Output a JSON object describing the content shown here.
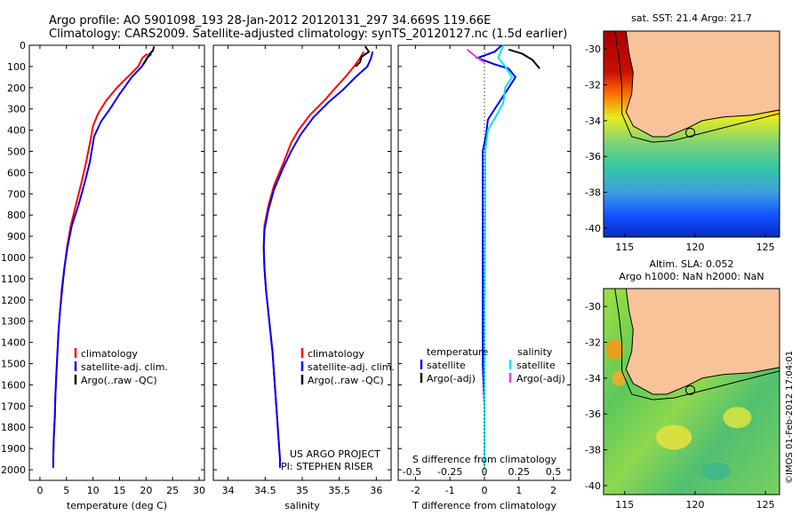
{
  "header": {
    "line1": "Argo profile: AO 5901098_193 28-Jan-2012 20120131_297 34.669S 119.66E",
    "line2": "Climatology: CARS2009. Satellite-adjusted climatology: synTS_20120127.nc (1.5d earlier)"
  },
  "credits": {
    "line1": "US ARGO PROJECT",
    "line2": "PI: STEPHEN RISER"
  },
  "stamp": "©IMOS 01-Feb-2012 17:04:01",
  "colors": {
    "climatology": "#ff0000",
    "satellite": "#0000ff",
    "argo": "#000000",
    "sat_salinity": "#00e5ee",
    "argo_salinity": "#e040e0",
    "land": "#f9c39a"
  },
  "chart_data": [
    {
      "type": "line",
      "xlabel": "temperature (deg C)",
      "xlim": [
        -2,
        31
      ],
      "xticks": [
        0,
        5,
        10,
        15,
        20,
        25,
        30
      ],
      "ylim": [
        0,
        2050
      ],
      "yticks": [
        0,
        100,
        200,
        300,
        400,
        500,
        600,
        700,
        800,
        900,
        1000,
        1100,
        1200,
        1300,
        1400,
        1500,
        1600,
        1700,
        1800,
        1900,
        2000
      ],
      "legend": [
        "climatology",
        "satellite-adj. clim.",
        "Argo(..raw -QC)"
      ],
      "series": [
        {
          "name": "climatology",
          "color": "#ff0000",
          "points": [
            [
              20.2,
              40
            ],
            [
              19.3,
              60
            ],
            [
              18.5,
              100
            ],
            [
              16.5,
              150
            ],
            [
              14.5,
              200
            ],
            [
              12.5,
              260
            ],
            [
              11,
              320
            ],
            [
              10,
              380
            ],
            [
              9.5,
              450
            ],
            [
              8.7,
              550
            ],
            [
              7.8,
              650
            ],
            [
              6.8,
              750
            ],
            [
              5.8,
              850
            ],
            [
              5.1,
              950
            ],
            [
              4.6,
              1050
            ],
            [
              4.1,
              1150
            ],
            [
              3.8,
              1250
            ],
            [
              3.5,
              1350
            ],
            [
              3.3,
              1450
            ],
            [
              3.1,
              1550
            ],
            [
              2.9,
              1650
            ],
            [
              2.8,
              1750
            ],
            [
              2.6,
              1850
            ],
            [
              2.5,
              1950
            ],
            [
              2.5,
              1990
            ]
          ]
        },
        {
          "name": "satellite-adj. clim.",
          "color": "#0000ff",
          "points": [
            [
              21,
              40
            ],
            [
              20.2,
              60
            ],
            [
              19.2,
              100
            ],
            [
              17.3,
              150
            ],
            [
              15,
              230
            ],
            [
              13.2,
              300
            ],
            [
              11.5,
              360
            ],
            [
              10.2,
              430
            ],
            [
              9.4,
              550
            ],
            [
              8.4,
              650
            ],
            [
              7.3,
              750
            ],
            [
              6,
              850
            ],
            [
              5.2,
              950
            ],
            [
              4.6,
              1050
            ],
            [
              4.2,
              1150
            ],
            [
              3.8,
              1250
            ],
            [
              3.5,
              1350
            ],
            [
              3.3,
              1450
            ],
            [
              3.1,
              1550
            ],
            [
              2.9,
              1650
            ],
            [
              2.8,
              1750
            ],
            [
              2.6,
              1850
            ],
            [
              2.5,
              1950
            ],
            [
              2.5,
              1990
            ]
          ]
        },
        {
          "name": "Argo(..raw -QC)",
          "color": "#000000",
          "points": [
            [
              21.5,
              5
            ],
            [
              21.3,
              25
            ],
            [
              20.5,
              45
            ],
            [
              20,
              70
            ],
            [
              19.5,
              90
            ]
          ]
        }
      ]
    },
    {
      "type": "line",
      "xlabel": "salinity",
      "xlim": [
        33.8,
        36.2
      ],
      "xticks": [
        34,
        34.5,
        35,
        35.5,
        36
      ],
      "ylim": [
        0,
        2050
      ],
      "legend": [
        "climatology",
        "satellite-adj. clim.",
        "Argo(..raw -QC)"
      ],
      "series": [
        {
          "name": "climatology",
          "color": "#ff0000",
          "points": [
            [
              35.83,
              30
            ],
            [
              35.78,
              60
            ],
            [
              35.7,
              100
            ],
            [
              35.58,
              150
            ],
            [
              35.45,
              200
            ],
            [
              35.3,
              260
            ],
            [
              35.1,
              330
            ],
            [
              34.95,
              400
            ],
            [
              34.85,
              460
            ],
            [
              34.74,
              560
            ],
            [
              34.62,
              660
            ],
            [
              34.54,
              760
            ],
            [
              34.49,
              850
            ],
            [
              34.48,
              950
            ],
            [
              34.49,
              1050
            ],
            [
              34.51,
              1150
            ],
            [
              34.54,
              1250
            ],
            [
              34.57,
              1350
            ],
            [
              34.6,
              1450
            ],
            [
              34.62,
              1550
            ],
            [
              34.64,
              1650
            ],
            [
              34.66,
              1750
            ],
            [
              34.68,
              1850
            ],
            [
              34.7,
              1950
            ],
            [
              34.7,
              1990
            ]
          ]
        },
        {
          "name": "satellite-adj. clim.",
          "color": "#0000ff",
          "points": [
            [
              35.95,
              30
            ],
            [
              35.93,
              60
            ],
            [
              35.88,
              100
            ],
            [
              35.72,
              150
            ],
            [
              35.55,
              210
            ],
            [
              35.35,
              270
            ],
            [
              35.15,
              340
            ],
            [
              34.98,
              420
            ],
            [
              34.85,
              500
            ],
            [
              34.74,
              580
            ],
            [
              34.62,
              680
            ],
            [
              34.54,
              780
            ],
            [
              34.49,
              870
            ],
            [
              34.48,
              950
            ],
            [
              34.49,
              1050
            ],
            [
              34.51,
              1150
            ],
            [
              34.54,
              1250
            ],
            [
              34.57,
              1350
            ],
            [
              34.6,
              1450
            ],
            [
              34.62,
              1550
            ],
            [
              34.64,
              1650
            ],
            [
              34.66,
              1750
            ],
            [
              34.68,
              1850
            ],
            [
              34.7,
              1950
            ],
            [
              34.7,
              1990
            ]
          ]
        },
        {
          "name": "Argo(..raw -QC)",
          "color": "#000000",
          "points": [
            [
              35.85,
              5
            ],
            [
              35.9,
              30
            ],
            [
              35.8,
              55
            ],
            [
              35.78,
              80
            ],
            [
              35.72,
              100
            ]
          ]
        }
      ]
    },
    {
      "type": "line",
      "xlabel": "T difference from climatology",
      "xlabel_top": "S difference from climatology",
      "xlim": [
        -2.5,
        2.5
      ],
      "xticks": [
        -2,
        -1,
        0,
        1,
        2
      ],
      "xticks_top": [
        "-0.5",
        "-0.25",
        "0",
        "0.25",
        "0.5"
      ],
      "ylim": [
        0,
        2050
      ],
      "legend_temperature": {
        "title": "temperature",
        "items": [
          "satellite",
          "Argo(-adj)"
        ]
      },
      "legend_salinity": {
        "title": "salinity",
        "items": [
          "satellite",
          "Argo(-adj)"
        ]
      },
      "series": [
        {
          "name": "temperature satellite",
          "color": "#0000ff",
          "points": [
            [
              0.5,
              0
            ],
            [
              0.3,
              30
            ],
            [
              -0.2,
              60
            ],
            [
              0.3,
              90
            ],
            [
              0.7,
              110
            ],
            [
              0.9,
              150
            ],
            [
              0.7,
              200
            ],
            [
              0.5,
              250
            ],
            [
              0.3,
              300
            ],
            [
              0.1,
              350
            ],
            [
              0.05,
              420
            ],
            [
              -0.05,
              500
            ],
            [
              -0.05,
              700
            ],
            [
              -0.05,
              900
            ],
            [
              -0.05,
              1100
            ],
            [
              -0.05,
              1300
            ],
            [
              -0.05,
              1500
            ],
            [
              0,
              1700
            ],
            [
              0,
              1990
            ]
          ]
        },
        {
          "name": "temperature Argo(-adj)",
          "color": "#000000",
          "points": [
            [
              0.7,
              20
            ],
            [
              1.1,
              40
            ],
            [
              1.4,
              70
            ],
            [
              1.5,
              90
            ],
            [
              1.6,
              110
            ]
          ]
        },
        {
          "name": "salinity satellite",
          "color": "#00e5ee",
          "points": [
            [
              0.55,
              0
            ],
            [
              0.4,
              60
            ],
            [
              0.6,
              100
            ],
            [
              0.8,
              150
            ],
            [
              0.6,
              200
            ],
            [
              0.55,
              270
            ],
            [
              0.35,
              330
            ],
            [
              0.1,
              400
            ],
            [
              0.02,
              500
            ],
            [
              0.02,
              800
            ],
            [
              0,
              1200
            ],
            [
              0,
              1600
            ],
            [
              0,
              1990
            ]
          ]
        },
        {
          "name": "salinity Argo(-adj)",
          "color": "#e040e0",
          "points": [
            [
              -0.5,
              20
            ],
            [
              -0.2,
              60
            ],
            [
              0,
              80
            ]
          ]
        }
      ]
    },
    {
      "type": "heatmap",
      "title": "sat. SST: 21.4 Argo: 21.7",
      "xticks": [
        115,
        120,
        125
      ],
      "yticks": [
        -30,
        -32,
        -34,
        -36,
        -38,
        -40
      ],
      "xlim": [
        113.5,
        126
      ],
      "ylim": [
        -40.5,
        -29
      ],
      "argo_position": [
        119.66,
        -34.669
      ]
    },
    {
      "type": "heatmap",
      "title": "Altim. SLA: 0.052",
      "subtitle": "Argo h1000: NaN h2000: NaN",
      "xticks": [
        115,
        120,
        125
      ],
      "yticks": [
        -30,
        -32,
        -34,
        -36,
        -38,
        -40
      ],
      "xlim": [
        113.5,
        126
      ],
      "ylim": [
        -40.5,
        -29
      ],
      "argo_position": [
        119.66,
        -34.669
      ]
    }
  ]
}
